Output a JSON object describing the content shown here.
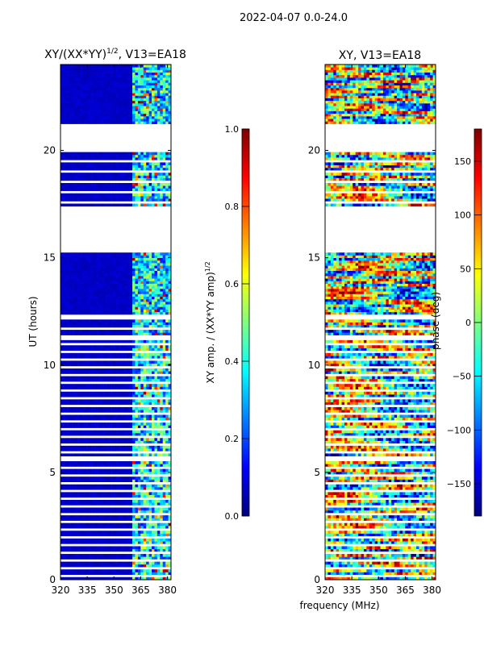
{
  "suptitle": "2022-04-07 0.0-24.0",
  "xlabel": "frequency (MHz)",
  "colors": {
    "jet": [
      "#00007f",
      "#0000ff",
      "#007fff",
      "#00ffff",
      "#7fff7f",
      "#ffff00",
      "#ff7f00",
      "#ff0000",
      "#7f0000"
    ],
    "nan": "#ffffff"
  },
  "chart_data": [
    {
      "type": "heatmap",
      "title_prefix": "XY/(XX*YY)",
      "title_sup": "1/2",
      "title_suffix": ", V13=EA18",
      "xlabel": "",
      "ylabel": "UT (hours)",
      "xlim": [
        320,
        382
      ],
      "ylim": [
        0,
        24
      ],
      "xticks": [
        "320",
        "335",
        "350",
        "365",
        "380"
      ],
      "xtick_values": [
        320,
        335,
        350,
        365,
        380
      ],
      "yticks": [
        "0",
        "5",
        "10",
        "15",
        "20"
      ],
      "ytick_values": [
        0,
        5,
        10,
        15,
        20
      ],
      "colorbar": {
        "label": "XY amp. / (XX*YY amp)",
        "label_sup": "1/2",
        "range": [
          0,
          1
        ],
        "ticks": [
          "0.0",
          "0.2",
          "0.4",
          "0.6",
          "0.8",
          "1.0"
        ],
        "tick_values": [
          0,
          0.2,
          0.4,
          0.6,
          0.8,
          1.0
        ]
      },
      "blank_time_ranges": [
        [
          21.2,
          20.0
        ],
        [
          17.4,
          15.2
        ],
        [
          12.4,
          12.1
        ],
        [
          11.4,
          11.2
        ],
        [
          5.5,
          5.7
        ]
      ],
      "rfi_band_mhz": [
        360,
        382
      ],
      "typical_value": 0.05
    },
    {
      "type": "heatmap",
      "title": "XY, V13=EA18",
      "xlabel": "",
      "ylabel": "phase (deg)",
      "xlim": [
        320,
        382
      ],
      "ylim": [
        0,
        24
      ],
      "xticks": [
        "320",
        "335",
        "350",
        "365",
        "380"
      ],
      "xtick_values": [
        320,
        335,
        350,
        365,
        380
      ],
      "yticks": [
        "0",
        "5",
        "10",
        "15",
        "20"
      ],
      "ytick_values": [
        0,
        5,
        10,
        15,
        20
      ],
      "colorbar": {
        "label": "",
        "range": [
          -180,
          180
        ],
        "ticks": [
          "−150",
          "−100",
          "−50",
          "0",
          "50",
          "100",
          "150"
        ],
        "tick_values": [
          -150,
          -100,
          -50,
          0,
          50,
          100,
          150
        ]
      },
      "blank_time_ranges": [
        [
          21.2,
          20.0
        ],
        [
          17.4,
          15.2
        ],
        [
          12.4,
          12.1
        ],
        [
          11.4,
          11.2
        ],
        [
          5.5,
          5.7
        ]
      ]
    }
  ]
}
